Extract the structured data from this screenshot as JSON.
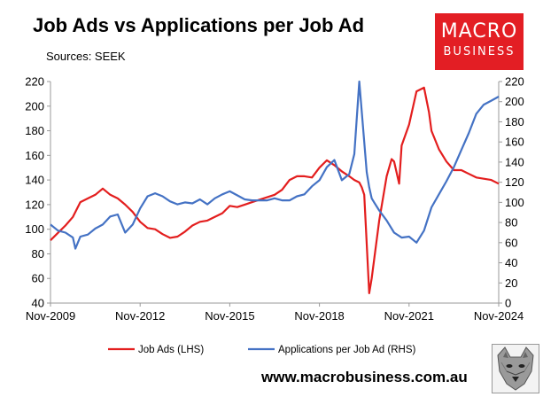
{
  "title": "Job Ads vs Applications per Job Ad",
  "subtitle": "Sources: SEEK",
  "logo": {
    "line1": "MACRO",
    "line2": "BUSINESS"
  },
  "footer_url": "www.macrobusiness.com.au",
  "colors": {
    "job_ads": "#e31e1e",
    "applications": "#4472c4",
    "logo_bg": "#e31e24"
  },
  "chart_data": {
    "type": "line",
    "title": "Job Ads vs Applications per Job Ad",
    "x_tick_labels": [
      "Nov-2009",
      "Nov-2012",
      "Nov-2015",
      "Nov-2018",
      "Nov-2021",
      "Nov-2024"
    ],
    "x_range": [
      "Nov-2009",
      "Nov-2024"
    ],
    "y_left": {
      "ticks": [
        40,
        60,
        80,
        100,
        120,
        140,
        160,
        180,
        200,
        220
      ],
      "range": [
        40,
        220
      ]
    },
    "y_right": {
      "ticks": [
        0,
        20,
        40,
        60,
        80,
        100,
        120,
        140,
        160,
        180,
        200,
        220
      ],
      "range": [
        0,
        220
      ]
    },
    "grid": false,
    "legend_position": "bottom",
    "series": [
      {
        "name": "Job Ads (LHS)",
        "axis": "left",
        "x": [
          "Nov-2009",
          "Feb-2010",
          "May-2010",
          "Aug-2010",
          "Nov-2010",
          "Feb-2011",
          "May-2011",
          "Aug-2011",
          "Nov-2011",
          "Feb-2012",
          "May-2012",
          "Aug-2012",
          "Nov-2012",
          "Feb-2013",
          "May-2013",
          "Aug-2013",
          "Nov-2013",
          "Feb-2014",
          "May-2014",
          "Aug-2014",
          "Nov-2014",
          "Feb-2015",
          "May-2015",
          "Aug-2015",
          "Nov-2015",
          "Feb-2016",
          "May-2016",
          "Aug-2016",
          "Nov-2016",
          "Feb-2017",
          "May-2017",
          "Aug-2017",
          "Nov-2017",
          "Feb-2018",
          "May-2018",
          "Aug-2018",
          "Nov-2018",
          "Feb-2019",
          "May-2019",
          "Aug-2019",
          "Nov-2019",
          "Jan-2020",
          "Mar-2020",
          "Apr-2020",
          "May-2020",
          "Jul-2020",
          "Aug-2020",
          "Nov-2020",
          "Feb-2021",
          "Apr-2021",
          "May-2021",
          "Jul-2021",
          "Aug-2021",
          "Nov-2021",
          "Feb-2022",
          "May-2022",
          "Jul-2022",
          "Aug-2022",
          "Nov-2022",
          "Feb-2023",
          "May-2023",
          "Aug-2023",
          "Nov-2023",
          "Feb-2024",
          "May-2024",
          "Aug-2024",
          "Nov-2024"
        ],
        "values": [
          91,
          97,
          103,
          110,
          122,
          125,
          128,
          133,
          128,
          125,
          120,
          114,
          106,
          101,
          100,
          96,
          93,
          94,
          98,
          103,
          106,
          107,
          110,
          113,
          119,
          118,
          120,
          122,
          124,
          126,
          128,
          132,
          140,
          143,
          143,
          142,
          150,
          156,
          152,
          147,
          143,
          140,
          138,
          134,
          128,
          48,
          60,
          107,
          143,
          157,
          155,
          137,
          168,
          185,
          212,
          215,
          195,
          180,
          165,
          155,
          148,
          148,
          145,
          142,
          141,
          140,
          137
        ]
      },
      {
        "name": "Applications per Job Ad (RHS)",
        "axis": "right",
        "x": [
          "Nov-2009",
          "Feb-2010",
          "May-2010",
          "Aug-2010",
          "Sep-2010",
          "Nov-2010",
          "Feb-2011",
          "May-2011",
          "Aug-2011",
          "Nov-2011",
          "Feb-2012",
          "May-2012",
          "Aug-2012",
          "Nov-2012",
          "Feb-2013",
          "May-2013",
          "Aug-2013",
          "Nov-2013",
          "Feb-2014",
          "May-2014",
          "Aug-2014",
          "Nov-2014",
          "Feb-2015",
          "May-2015",
          "Aug-2015",
          "Nov-2015",
          "Feb-2016",
          "May-2016",
          "Aug-2016",
          "Nov-2016",
          "Feb-2017",
          "May-2017",
          "Aug-2017",
          "Nov-2017",
          "Feb-2018",
          "May-2018",
          "Aug-2018",
          "Nov-2018",
          "Feb-2019",
          "May-2019",
          "Aug-2019",
          "Nov-2019",
          "Jan-2020",
          "Mar-2020",
          "May-2020",
          "Jun-2020",
          "Jul-2020",
          "Aug-2020",
          "Sep-2020",
          "Nov-2020",
          "Feb-2021",
          "May-2021",
          "Aug-2021",
          "Nov-2021",
          "Feb-2022",
          "May-2022",
          "Aug-2022",
          "Nov-2022",
          "Feb-2023",
          "May-2023",
          "Aug-2023",
          "Nov-2023",
          "Feb-2024",
          "May-2024",
          "Aug-2024",
          "Nov-2024"
        ],
        "values": [
          78,
          72,
          70,
          65,
          54,
          66,
          68,
          74,
          78,
          86,
          88,
          70,
          78,
          94,
          106,
          109,
          106,
          101,
          98,
          100,
          99,
          103,
          98,
          104,
          108,
          111,
          107,
          103,
          102,
          102,
          102,
          104,
          102,
          102,
          106,
          108,
          116,
          122,
          135,
          142,
          122,
          128,
          148,
          220,
          160,
          130,
          115,
          104,
          100,
          92,
          82,
          70,
          65,
          66,
          60,
          72,
          95,
          108,
          121,
          135,
          152,
          169,
          188,
          197,
          201,
          205
        ]
      }
    ]
  }
}
